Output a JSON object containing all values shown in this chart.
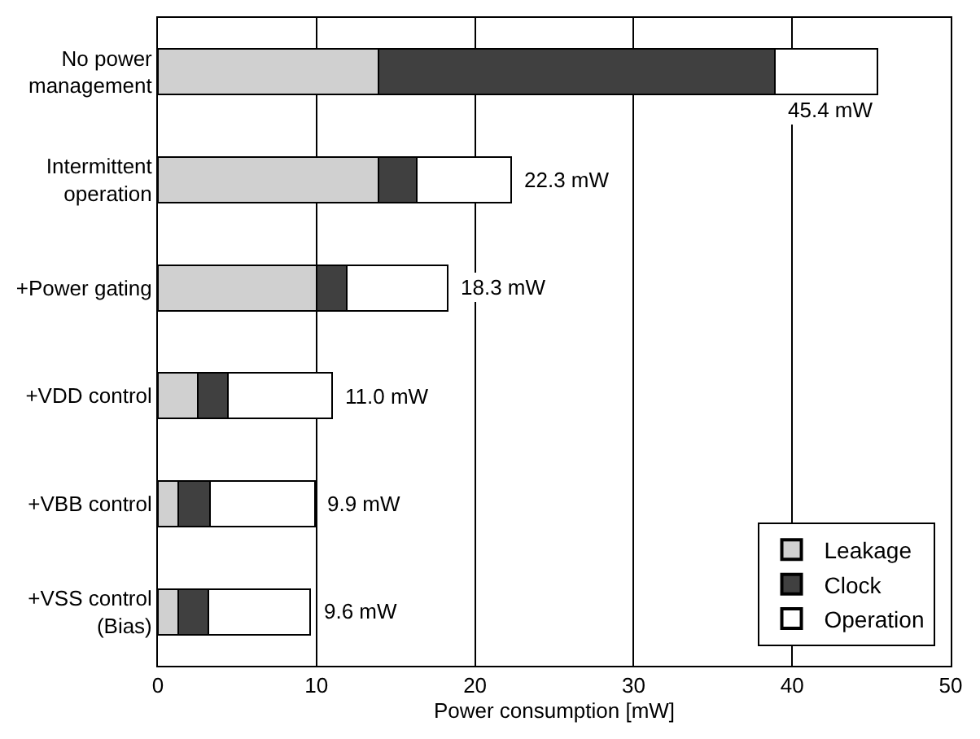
{
  "chart_data": {
    "type": "bar",
    "orientation": "horizontal",
    "stacked": true,
    "categories": [
      "No power\nmanagement",
      "Intermittent\noperation",
      "+Power gating",
      "+VDD control",
      "+VBB control",
      "+VSS control\n(Bias)"
    ],
    "series": [
      {
        "name": "Leakage",
        "color": "#d0d0d0",
        "values": [
          13.9,
          13.9,
          10.0,
          2.5,
          1.3,
          1.3
        ]
      },
      {
        "name": "Clock",
        "color": "#404040",
        "values": [
          25.0,
          2.4,
          1.9,
          1.9,
          2.0,
          1.9
        ]
      },
      {
        "name": "Operation",
        "color": "#ffffff",
        "values": [
          6.5,
          6.0,
          6.4,
          6.6,
          6.6,
          6.4
        ]
      }
    ],
    "totals": [
      "45.4 mW",
      "22.3 mW",
      "18.3 mW",
      "11.0 mW",
      "9.9 mW",
      "9.6 mW"
    ],
    "xlabel": "Power consumption [mW]",
    "xlim": [
      0,
      50
    ],
    "xticks": [
      0,
      10,
      20,
      30,
      40,
      50
    ],
    "grid": "x",
    "legend": "bottom right"
  }
}
